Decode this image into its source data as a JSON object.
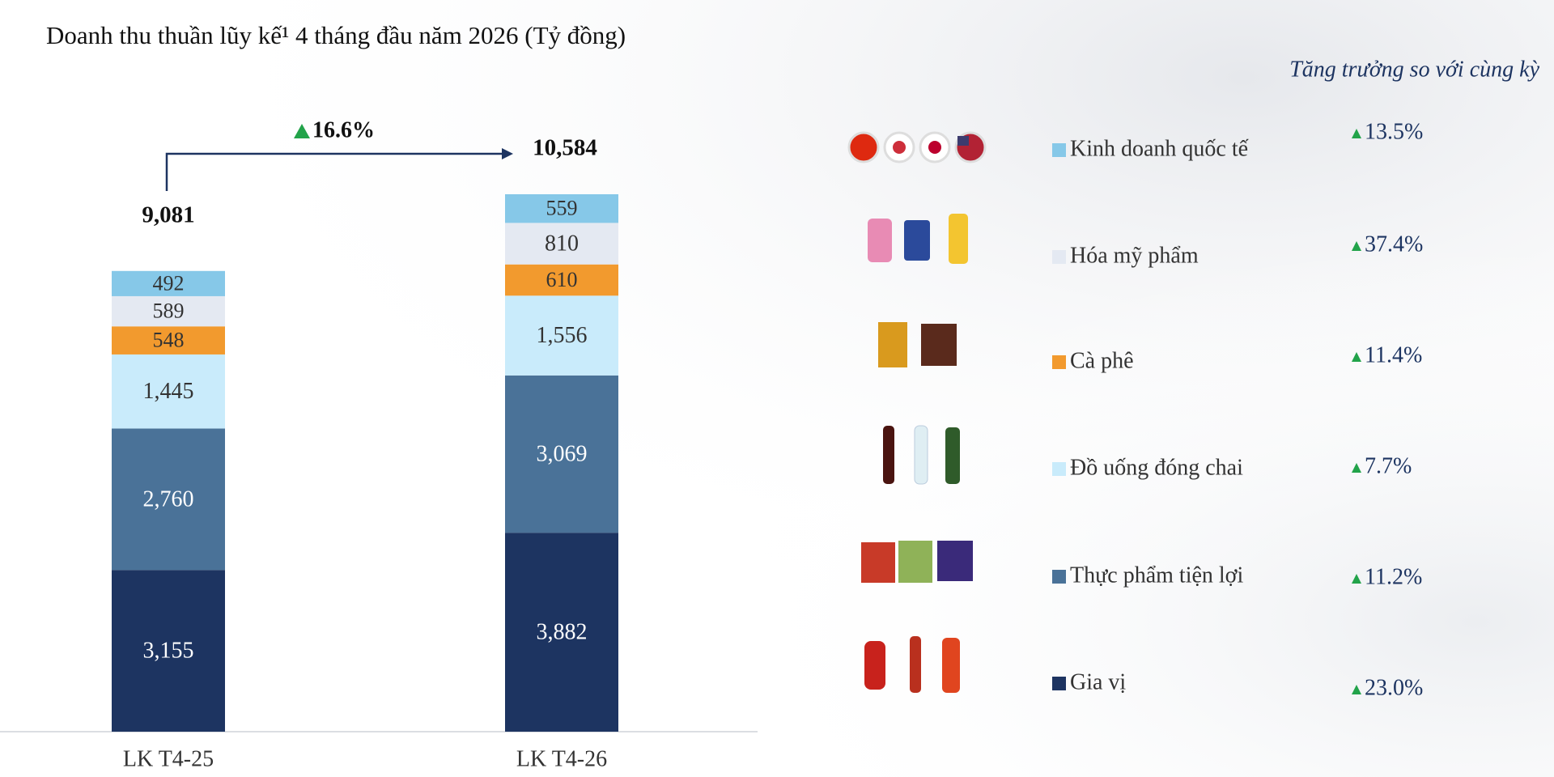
{
  "chart_data": {
    "type": "stacked_bar",
    "title": "Doanh thu thuần lũy kế¹ 4 tháng đầu năm 2026 (Tỷ đồng)",
    "subtitle": "Tăng trưởng so với cùng kỳ",
    "categories": [
      "LK T4-25",
      "LK T4-26"
    ],
    "series": [
      {
        "name": "Gia vị",
        "color": "#1d3461",
        "values": [
          3155,
          3882
        ],
        "value_labels": [
          "3,155",
          "3,882"
        ],
        "growth": {
          "value": 23.0,
          "label": "23.0%"
        }
      },
      {
        "name": "Thực phẩm tiện lợi",
        "color": "#4a7298",
        "values": [
          2760,
          3069
        ],
        "value_labels": [
          "2,760",
          "3,069"
        ],
        "growth": {
          "value": 11.2,
          "label": "11.2%"
        }
      },
      {
        "name": "Đồ uống đóng chai",
        "color": "#c9ebfb",
        "values": [
          1445,
          1556
        ],
        "value_labels": [
          "1,445",
          "1,556"
        ],
        "growth": {
          "value": 7.7,
          "label": "7.7%"
        }
      },
      {
        "name": "Cà phê",
        "color": "#f29a2e",
        "values": [
          548,
          610
        ],
        "value_labels": [
          "548",
          "610"
        ],
        "growth": {
          "value": 11.4,
          "label": "11.4%"
        }
      },
      {
        "name": "Hóa mỹ phẩm",
        "color": "#e4e9f2",
        "values": [
          589,
          810
        ],
        "value_labels": [
          "589",
          "810"
        ],
        "growth": {
          "value": 37.4,
          "label": "37.4%"
        }
      },
      {
        "name": "Kinh doanh quốc tế",
        "color": "#86c8e8",
        "values": [
          492,
          559
        ],
        "value_labels": [
          "492",
          "559"
        ],
        "growth": {
          "value": 13.5,
          "label": "13.5%"
        }
      }
    ],
    "totals": {
      "values": [
        9081,
        10584
      ],
      "value_labels": [
        "9,081",
        "10,584"
      ]
    },
    "growth": {
      "value": 16.6,
      "label": "16.6%"
    }
  }
}
